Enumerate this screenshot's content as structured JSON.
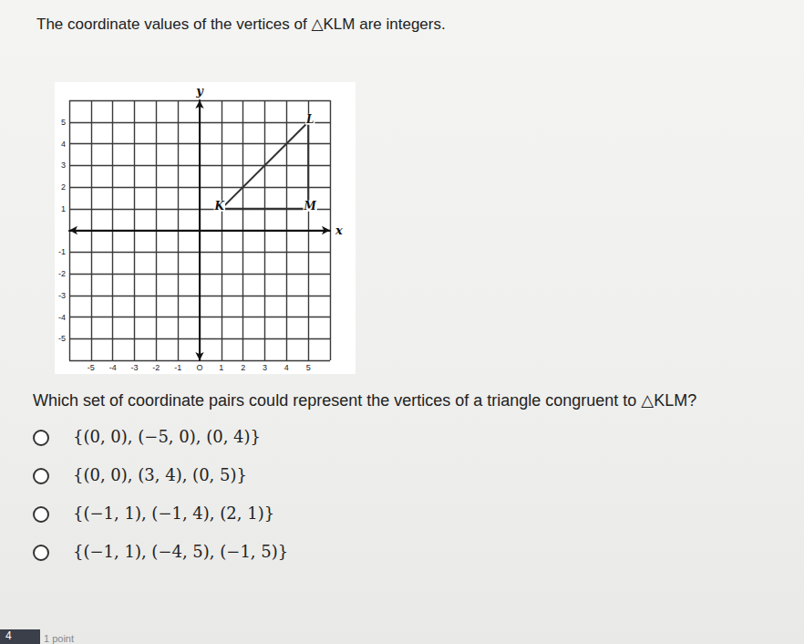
{
  "intro": "The coordinate values of the vertices of △KLM are integers.",
  "chart_data": {
    "type": "line",
    "x": [
      1,
      5,
      5
    ],
    "values": [
      1,
      5,
      1
    ],
    "point_labels": [
      "K",
      "L",
      "M"
    ],
    "x_label": "x",
    "y_label": "y",
    "color": "#333333",
    "xlim": [
      -6,
      6
    ],
    "ylim": [
      -6,
      6
    ],
    "xticks": [
      -5,
      -4,
      -3,
      -2,
      -1,
      {
        "value": 0,
        "label": "O"
      },
      1,
      2,
      3,
      4,
      5
    ],
    "yticks": [
      -5,
      -4,
      -3,
      -2,
      -1,
      1,
      2,
      3,
      4,
      5
    ],
    "grid": true
  },
  "question": "Which set of coordinate pairs could represent the vertices of a triangle congruent to △KLM?",
  "options": [
    "{(0, 0), (−5, 0), (0, 4)}",
    "{(0, 0), (3, 4), (0, 5)}",
    "{(−1, 1), (−1, 4), (2, 1)}",
    "{(−1, 1), (−4, 5), (−1, 5)}"
  ],
  "question_number": "4",
  "points": "1 point"
}
